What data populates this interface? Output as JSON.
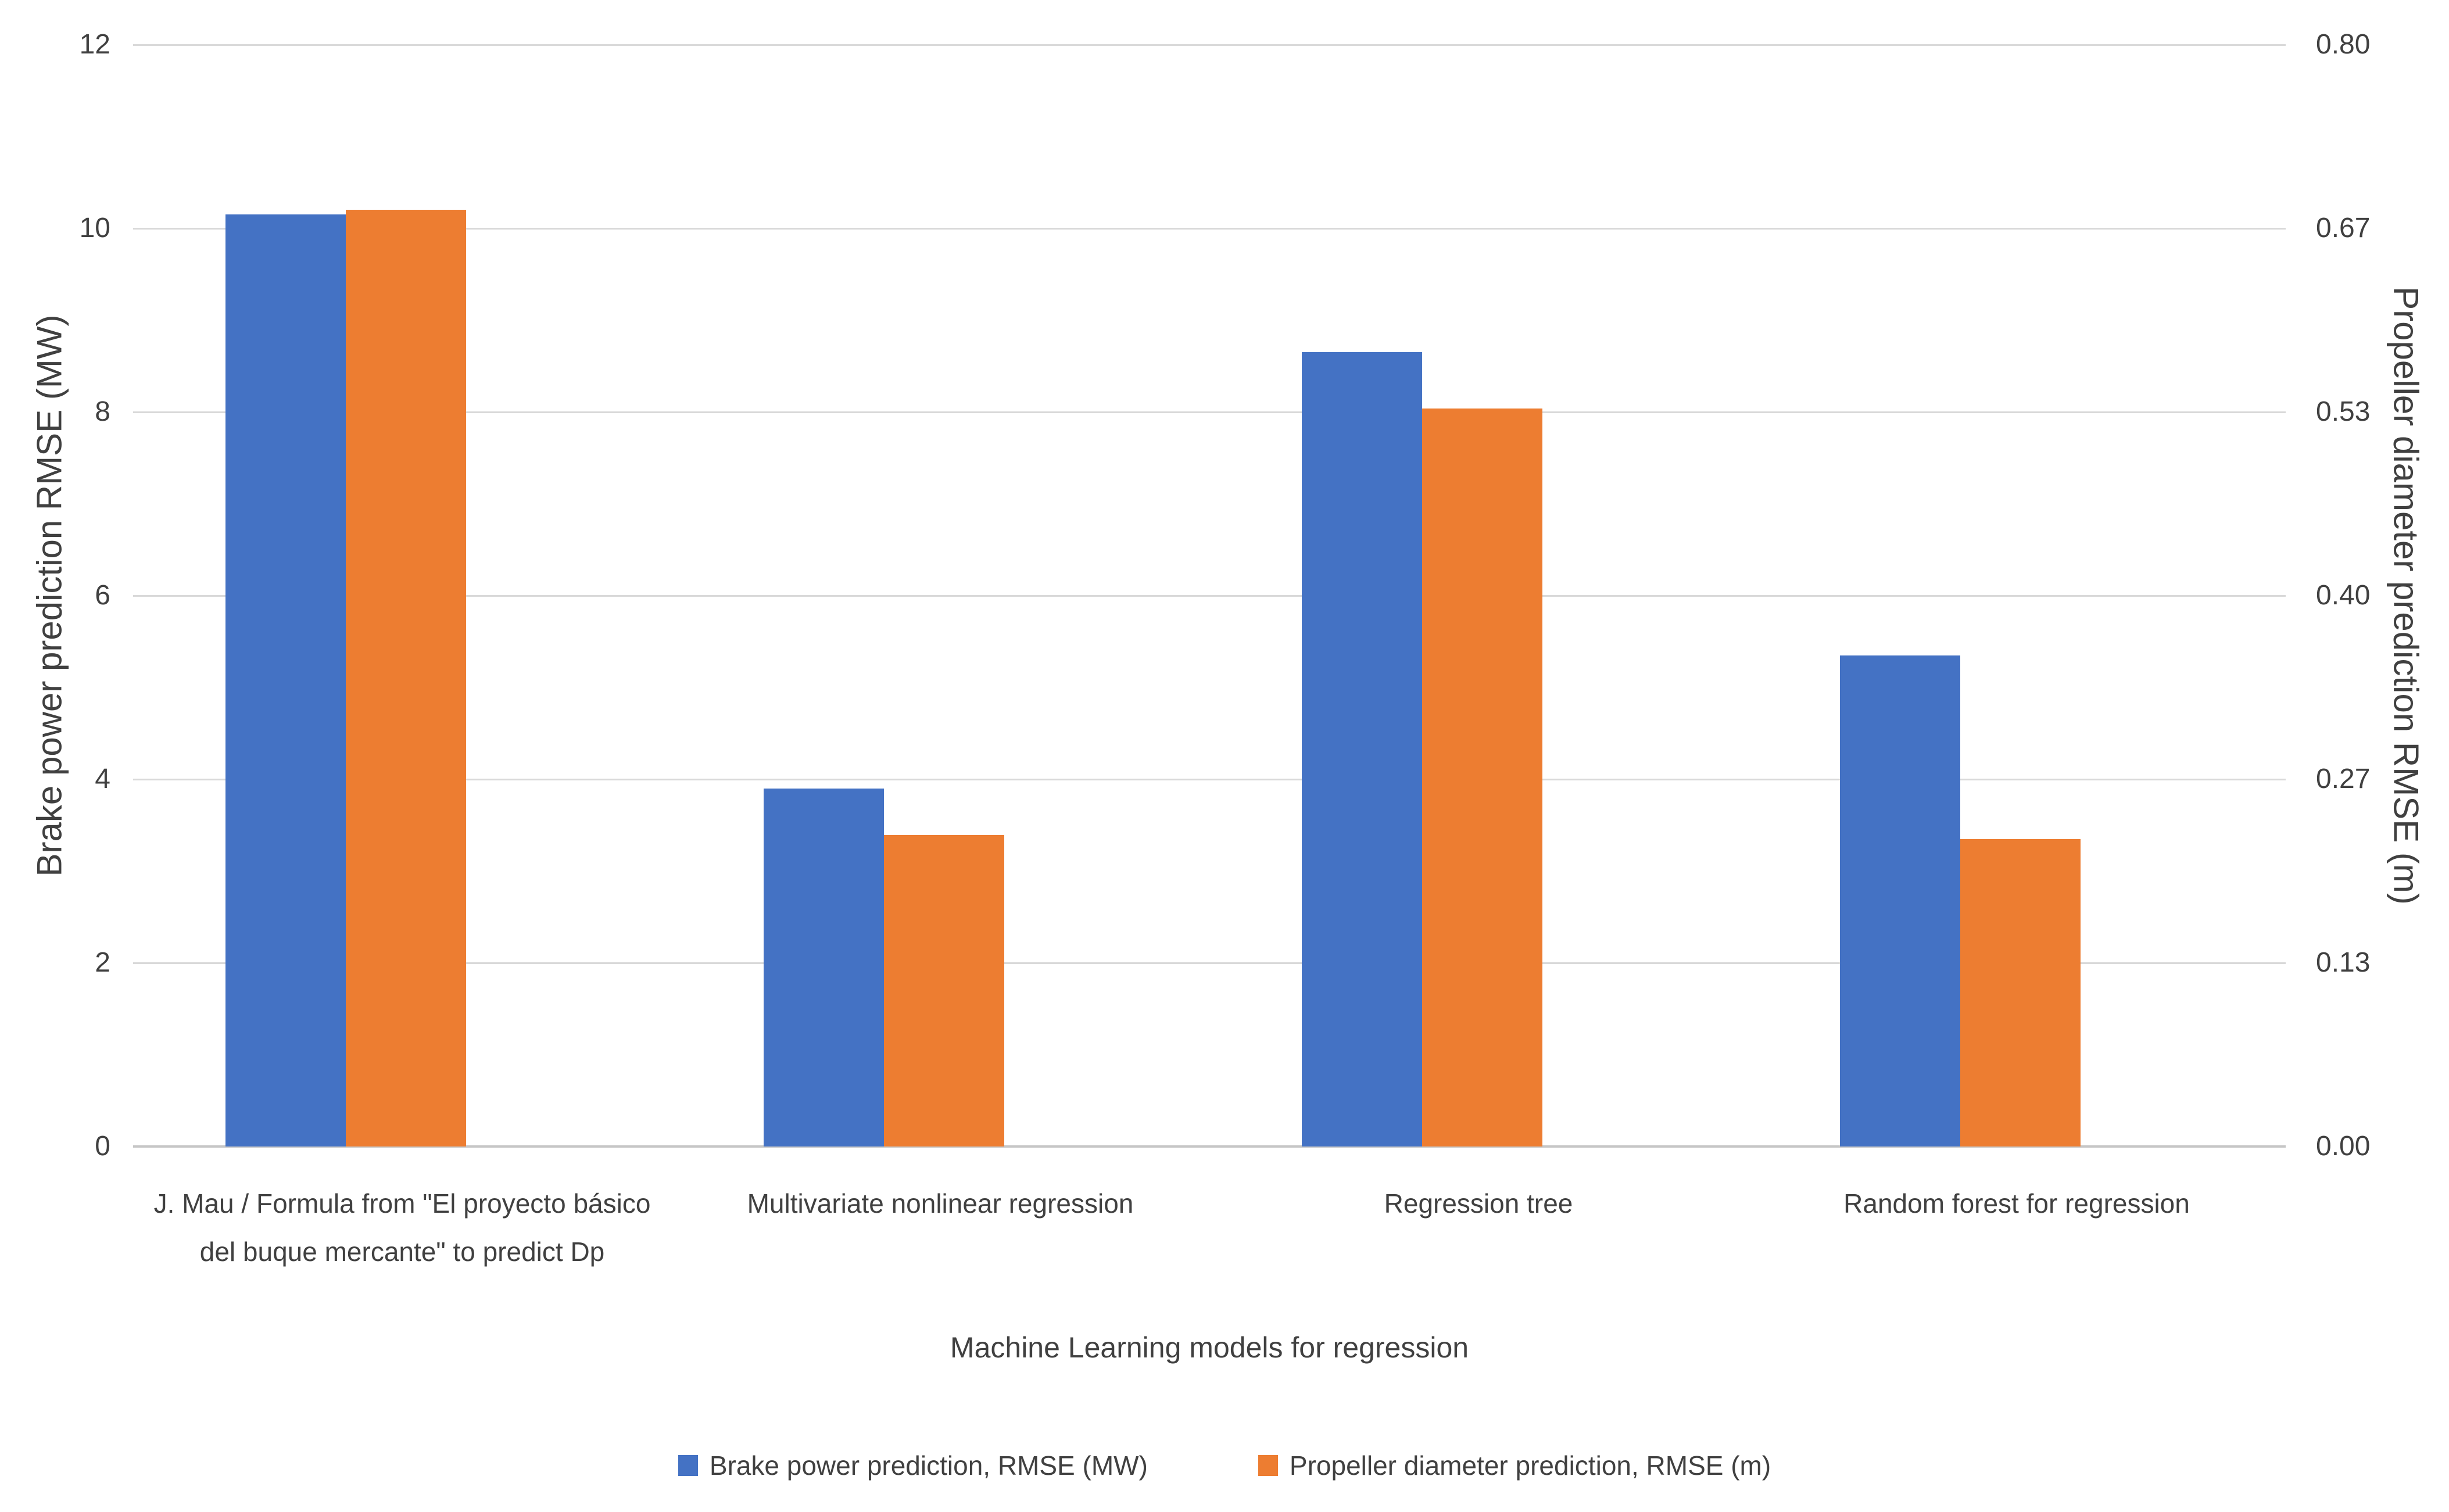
{
  "chart_data": {
    "type": "bar",
    "title": "",
    "xlabel": "Machine Learning models for regression",
    "categories": [
      "J. Mau / Formula from \"El proyecto básico del buque mercante\" to predict Dp",
      "Multivariate nonlinear regression",
      "Regression tree",
      "Random forest for regression"
    ],
    "series": [
      {
        "name": "Brake power prediction, RMSE (MW)",
        "axis": "left",
        "color": "#4472C4",
        "values": [
          10.15,
          3.9,
          8.65,
          5.35
        ]
      },
      {
        "name": "Propeller diameter prediction, RMSE (m)",
        "axis": "right",
        "color": "#ED7D31",
        "values": [
          0.68,
          0.226,
          0.536,
          0.223
        ]
      }
    ],
    "left_axis": {
      "title": "Brake power prediction RMSE (MW)",
      "min": 0,
      "max": 12,
      "ticks": [
        0,
        2,
        4,
        6,
        8,
        10,
        12
      ]
    },
    "right_axis": {
      "title": "Propeller diameter prediction RMSE (m)",
      "min": 0,
      "max": 0.8,
      "tick_labels": [
        "0.00",
        "0.13",
        "0.27",
        "0.40",
        "0.53",
        "0.67",
        "0.80"
      ]
    },
    "legend_position": "bottom",
    "gridlines": "horizontal"
  },
  "styles": {
    "gridline_color": "#d9d9d9",
    "baseline_color": "#c6c6c6",
    "text_color": "#404040",
    "background": "#ffffff"
  }
}
